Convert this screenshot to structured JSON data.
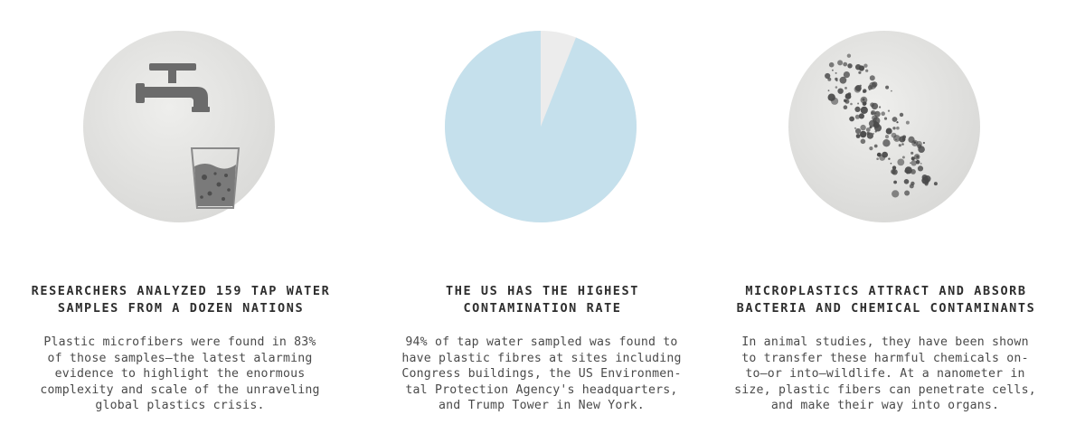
{
  "panels": [
    {
      "heading_line1": "RESEARCHERS ANALYZED 159 TAP WATER",
      "heading_line2": "SAMPLES FROM A DOZEN NATIONS",
      "body_lines": [
        "Plastic microfibers were found in 83%",
        "of those samples—the latest alarming",
        "evidence to highlight the enormous",
        "complexity and scale of the unraveling",
        "global plastics crisis."
      ],
      "icon": "faucet-and-glass-icon"
    },
    {
      "heading_line1": "THE US HAS THE HIGHEST",
      "heading_line2": "CONTAMINATION RATE",
      "body_lines": [
        "94% of tap water sampled was found to",
        "have plastic fibres at sites including",
        "Congress buildings, the US Environmen-",
        "tal Protection Agency's headquarters,",
        "and Trump Tower in New York."
      ],
      "icon": "pie-94-percent-icon",
      "pie_fraction": 0.94,
      "pie_color": "#c5e0ec",
      "pie_rest_color": "#ececec"
    },
    {
      "heading_line1": "MICROPLASTICS ATTRACT AND ABSORB",
      "heading_line2": "BACTERIA AND CHEMICAL CONTAMINANTS",
      "body_lines": [
        "In animal studies, they have been shown",
        "to transfer these harmful chemicals on-",
        "to—or into—wildlife. At a nanometer in",
        "size, plastic fibers can penetrate cells,",
        "and make their way into organs."
      ],
      "icon": "microplastic-particles-icon"
    }
  ],
  "colors": {
    "disc_gray": "#e3e3e1",
    "icon_dark": "#6c6c6c",
    "text": "#3a3a3a"
  }
}
